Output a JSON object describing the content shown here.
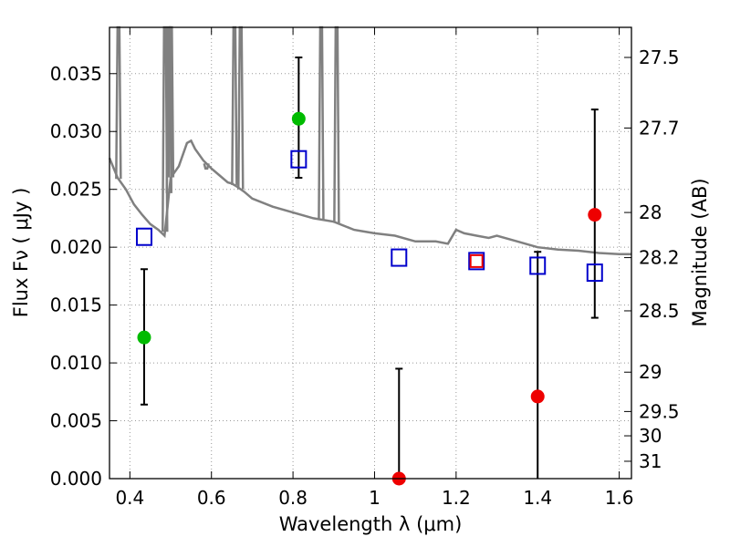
{
  "chart_data": {
    "type": "scatter",
    "xlabel": "Wavelength  λ (μm)",
    "ylabel": "Flux  Fν  ( μJy )",
    "ylabel_right": "Magnitude (AB)",
    "xlim": [
      0.35,
      1.63
    ],
    "ylim": [
      0.0,
      0.039
    ],
    "grid": true,
    "x_ticks": [
      0.4,
      0.6,
      0.8,
      1.0,
      1.2,
      1.4,
      1.6
    ],
    "x_tick_labels": [
      "0.4",
      "0.6",
      "0.8",
      "1",
      "1.2",
      "1.4",
      "1.6"
    ],
    "y_ticks": [
      0.0,
      0.005,
      0.01,
      0.015,
      0.02,
      0.025,
      0.03,
      0.035
    ],
    "y_tick_labels": [
      "0.000",
      "0.005",
      "0.010",
      "0.015",
      "0.020",
      "0.025",
      "0.030",
      "0.035"
    ],
    "right_ticks": [
      {
        "label": "27.5",
        "flux": 0.0364
      },
      {
        "label": "27.7",
        "flux": 0.0303
      },
      {
        "label": "28",
        "flux": 0.023
      },
      {
        "label": "28.2",
        "flux": 0.0191
      },
      {
        "label": "28.5",
        "flux": 0.0145
      },
      {
        "label": "29",
        "flux": 0.0092
      },
      {
        "label": "29.5",
        "flux": 0.0058
      },
      {
        "label": "30",
        "flux": 0.0037
      },
      {
        "label": "31",
        "flux": 0.0015
      }
    ],
    "colors": {
      "template": "#808080",
      "model": "#0000cc",
      "hst_acs": "#00bb00",
      "hst_wfc3": "#ee0000",
      "errorbar": "#000000",
      "grid": "#999999"
    },
    "template_spectrum": {
      "x": [
        0.35,
        0.37,
        0.39,
        0.41,
        0.43,
        0.45,
        0.47,
        0.485,
        0.5,
        0.52,
        0.54,
        0.55,
        0.56,
        0.58,
        0.6,
        0.62,
        0.64,
        0.65,
        0.66,
        0.68,
        0.7,
        0.75,
        0.8,
        0.85,
        0.9,
        0.95,
        1.0,
        1.05,
        1.1,
        1.15,
        1.18,
        1.2,
        1.22,
        1.25,
        1.28,
        1.3,
        1.35,
        1.4,
        1.45,
        1.5,
        1.55,
        1.6,
        1.63
      ],
      "y": [
        0.0277,
        0.026,
        0.025,
        0.0237,
        0.0228,
        0.022,
        0.0215,
        0.021,
        0.026,
        0.027,
        0.029,
        0.0292,
        0.0285,
        0.0275,
        0.0268,
        0.0262,
        0.0256,
        0.0255,
        0.0253,
        0.0248,
        0.0242,
        0.0235,
        0.023,
        0.0225,
        0.0222,
        0.0215,
        0.0212,
        0.021,
        0.0205,
        0.0205,
        0.0203,
        0.0215,
        0.0212,
        0.021,
        0.0208,
        0.021,
        0.0205,
        0.02,
        0.0198,
        0.0197,
        0.0195,
        0.0194,
        0.0194
      ],
      "emission_lines": [
        {
          "x": 0.372,
          "peak": 0.039
        },
        {
          "x": 0.486,
          "peak": 0.039
        },
        {
          "x": 0.496,
          "peak": 0.039
        },
        {
          "x": 0.5007,
          "peak": 0.039
        },
        {
          "x": 0.5876,
          "peak": 0.0268
        },
        {
          "x": 0.6563,
          "peak": 0.039
        },
        {
          "x": 0.6717,
          "peak": 0.039
        },
        {
          "x": 0.869,
          "peak": 0.039
        },
        {
          "x": 0.9069,
          "peak": 0.039
        }
      ]
    },
    "model_photometry": {
      "x": [
        0.435,
        0.814,
        1.06,
        1.25,
        1.4,
        1.54
      ],
      "y": [
        0.0209,
        0.0276,
        0.0191,
        0.0188,
        0.0184,
        0.0178
      ]
    },
    "observed_optical": {
      "x": [
        0.435,
        0.814
      ],
      "y": [
        0.0122,
        0.0311
      ],
      "err_low": [
        0.0064,
        0.026
      ],
      "err_high": [
        0.0181,
        0.0364
      ]
    },
    "observed_nir": {
      "x": [
        1.06,
        1.25,
        1.4,
        1.54
      ],
      "y": [
        0.0,
        0.0188,
        0.0071,
        0.0228
      ],
      "err_low": [
        0.0,
        null,
        0.0,
        0.0139
      ],
      "err_high": [
        0.0095,
        null,
        0.0196,
        0.0319
      ]
    }
  }
}
